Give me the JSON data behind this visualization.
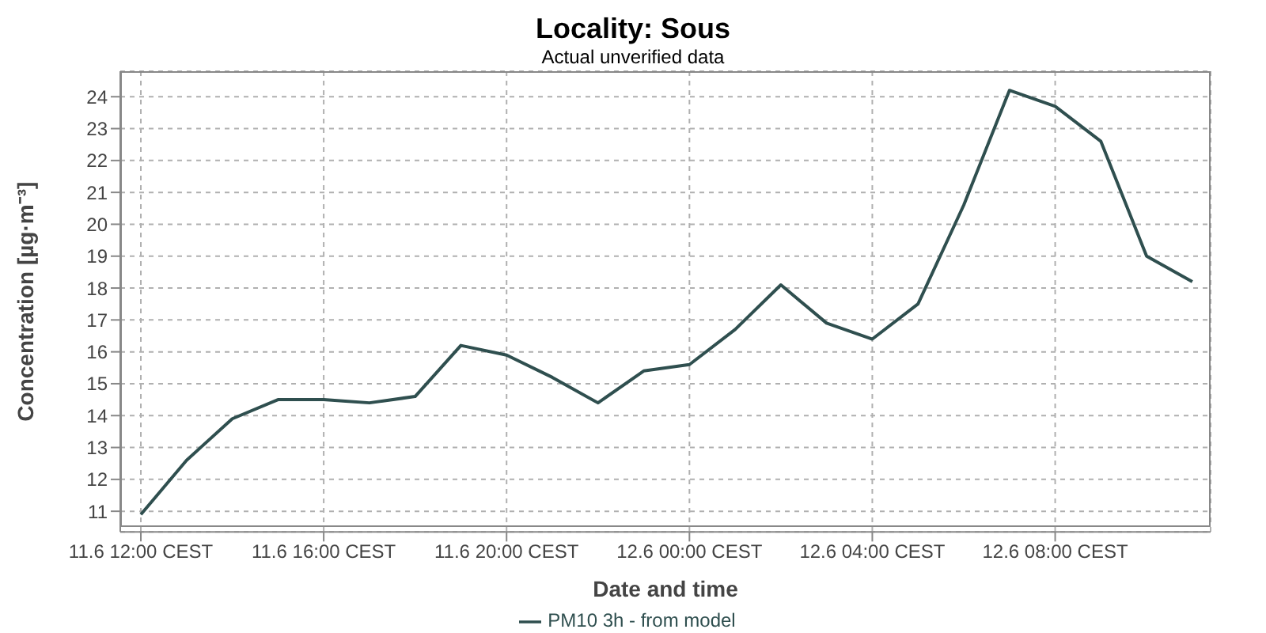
{
  "chart_data": {
    "type": "line",
    "title": "Locality: Sous",
    "subtitle": "Actual unverified data",
    "xlabel": "Date and time",
    "ylabel": "Concentration [µg·m⁻³]",
    "x": [
      "--06-11T12:00",
      "--06-11T13:00",
      "--06-11T14:00",
      "--06-11T15:00",
      "--06-11T16:00",
      "--06-11T17:00",
      "--06-11T18:00",
      "--06-11T19:00",
      "--06-11T20:00",
      "--06-11T21:00",
      "--06-11T22:00",
      "--06-11T23:00",
      "--06-12T00:00",
      "--06-12T01:00",
      "--06-12T02:00",
      "--06-12T03:00",
      "--06-12T04:00",
      "--06-12T05:00",
      "--06-12T06:00",
      "--06-12T07:00",
      "--06-12T08:00",
      "--06-12T09:00",
      "--06-12T10:00",
      "--06-12T11:00"
    ],
    "series": [
      {
        "name": "PM10 3h - from model",
        "color": "#2f4f4f",
        "values": [
          10.9,
          12.6,
          13.9,
          14.5,
          14.5,
          14.4,
          14.6,
          16.2,
          15.9,
          15.2,
          14.4,
          15.4,
          15.6,
          16.7,
          18.1,
          16.9,
          16.4,
          17.5,
          20.6,
          24.2,
          23.7,
          22.6,
          19.0,
          18.2
        ]
      }
    ],
    "xlim": [
      "--06-11T11:33",
      "--06-12T11:24"
    ],
    "xticks": [
      {
        "value": "--06-11T12:00",
        "label": "11.6 12:00 CEST"
      },
      {
        "value": "--06-11T16:00",
        "label": "11.6 16:00 CEST"
      },
      {
        "value": "--06-11T20:00",
        "label": "11.6 20:00 CEST"
      },
      {
        "value": "--06-12T00:00",
        "label": "12.6 00:00 CEST"
      },
      {
        "value": "--06-12T04:00",
        "label": "12.6 04:00 CEST"
      },
      {
        "value": "--06-12T08:00",
        "label": "12.6 08:00 CEST"
      }
    ],
    "ylim": [
      10.35,
      24.8
    ],
    "yticks": [
      11,
      12,
      13,
      14,
      15,
      16,
      17,
      18,
      19,
      20,
      21,
      22,
      23,
      24
    ],
    "grid": true,
    "legend": "bottom",
    "marker": "none",
    "line_style": "solid"
  }
}
